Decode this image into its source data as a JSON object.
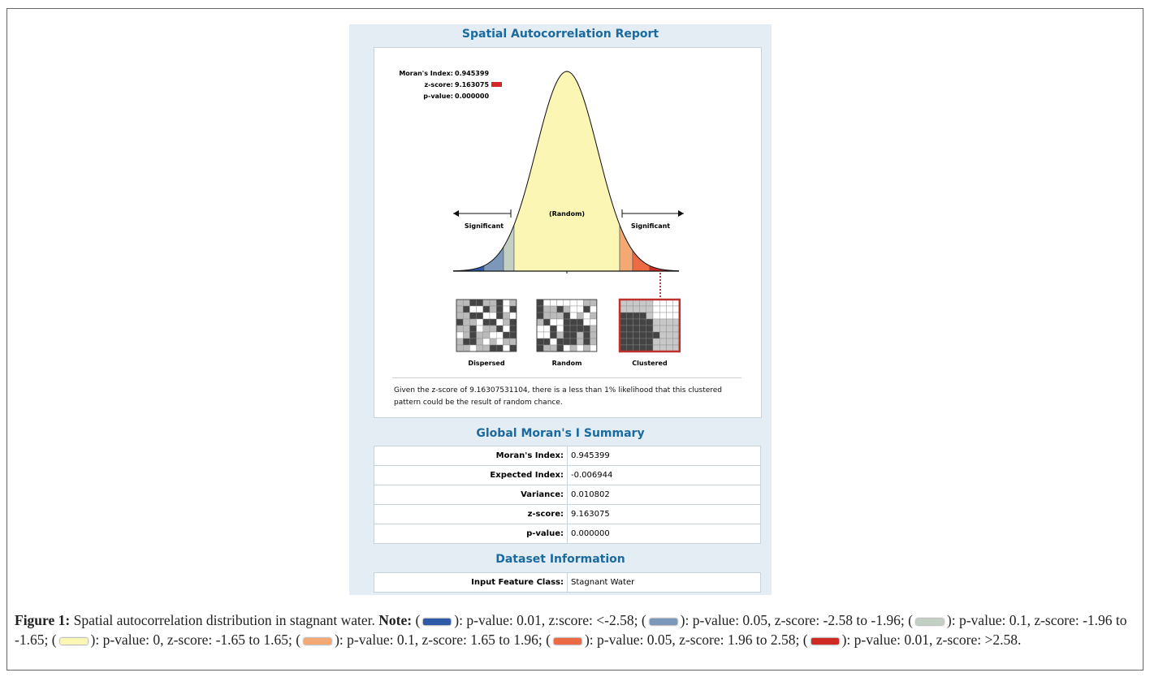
{
  "report": {
    "title": "Spatial Autocorrelation Report",
    "stats": [
      [
        "Moran's Index:",
        "0.945399"
      ],
      [
        "z-score:",
        "9.163075"
      ],
      [
        "p-value:",
        "0.000000"
      ]
    ],
    "curve_labels": {
      "left": "Significant",
      "center": "(Random)",
      "right": "Significant"
    },
    "patterns": [
      "Dispersed",
      "Random",
      "Clustered"
    ],
    "description": [
      "Given the z-score of 9.16307531104, there is a less than 1% likelihood that this clustered",
      "pattern could be the result of random chance."
    ]
  },
  "summary": {
    "title": "Global Moran's I Summary",
    "rows": [
      [
        "Moran's Index:",
        "0.945399"
      ],
      [
        "Expected Index:",
        "-0.006944"
      ],
      [
        "Variance:",
        "0.010802"
      ],
      [
        "z-score:",
        "9.163075"
      ],
      [
        "p-value:",
        "0.000000"
      ]
    ]
  },
  "dataset": {
    "title": "Dataset Information",
    "rows": [
      [
        "Input Feature Class:",
        "Stagnant Water"
      ]
    ]
  },
  "caption": {
    "label": "Figure 1:",
    "text": "Spatial autocorrelation distribution in stagnant water.",
    "note_label": "Note:",
    "swatch_open": "(",
    "swatch_close": "):",
    "entries": [
      {
        "color": "#2e5aa8",
        "text": "p-value: 0.01, z:score: <-2.58;"
      },
      {
        "color": "#7b98bb",
        "text": "p-value: 0.05, z-score: -2.58 to -1.96;"
      },
      {
        "color": "#c3cfc3",
        "text": "p-value: 0.1, z-score: -1.96 to -1.65;"
      },
      {
        "color": "#fbf6b4",
        "text": "p-value: 0, z-score: -1.65 to 1.65;"
      },
      {
        "color": "#f4a874",
        "text": "p-value: 0.1, z-score: 1.65 to 1.96;"
      },
      {
        "color": "#ec6a44",
        "text": "p-value: 0.05, z-score: 1.96 to 2.58;"
      },
      {
        "color": "#d02a24",
        "text": "p-value: 0.01, z-score: >2.58."
      }
    ]
  }
}
